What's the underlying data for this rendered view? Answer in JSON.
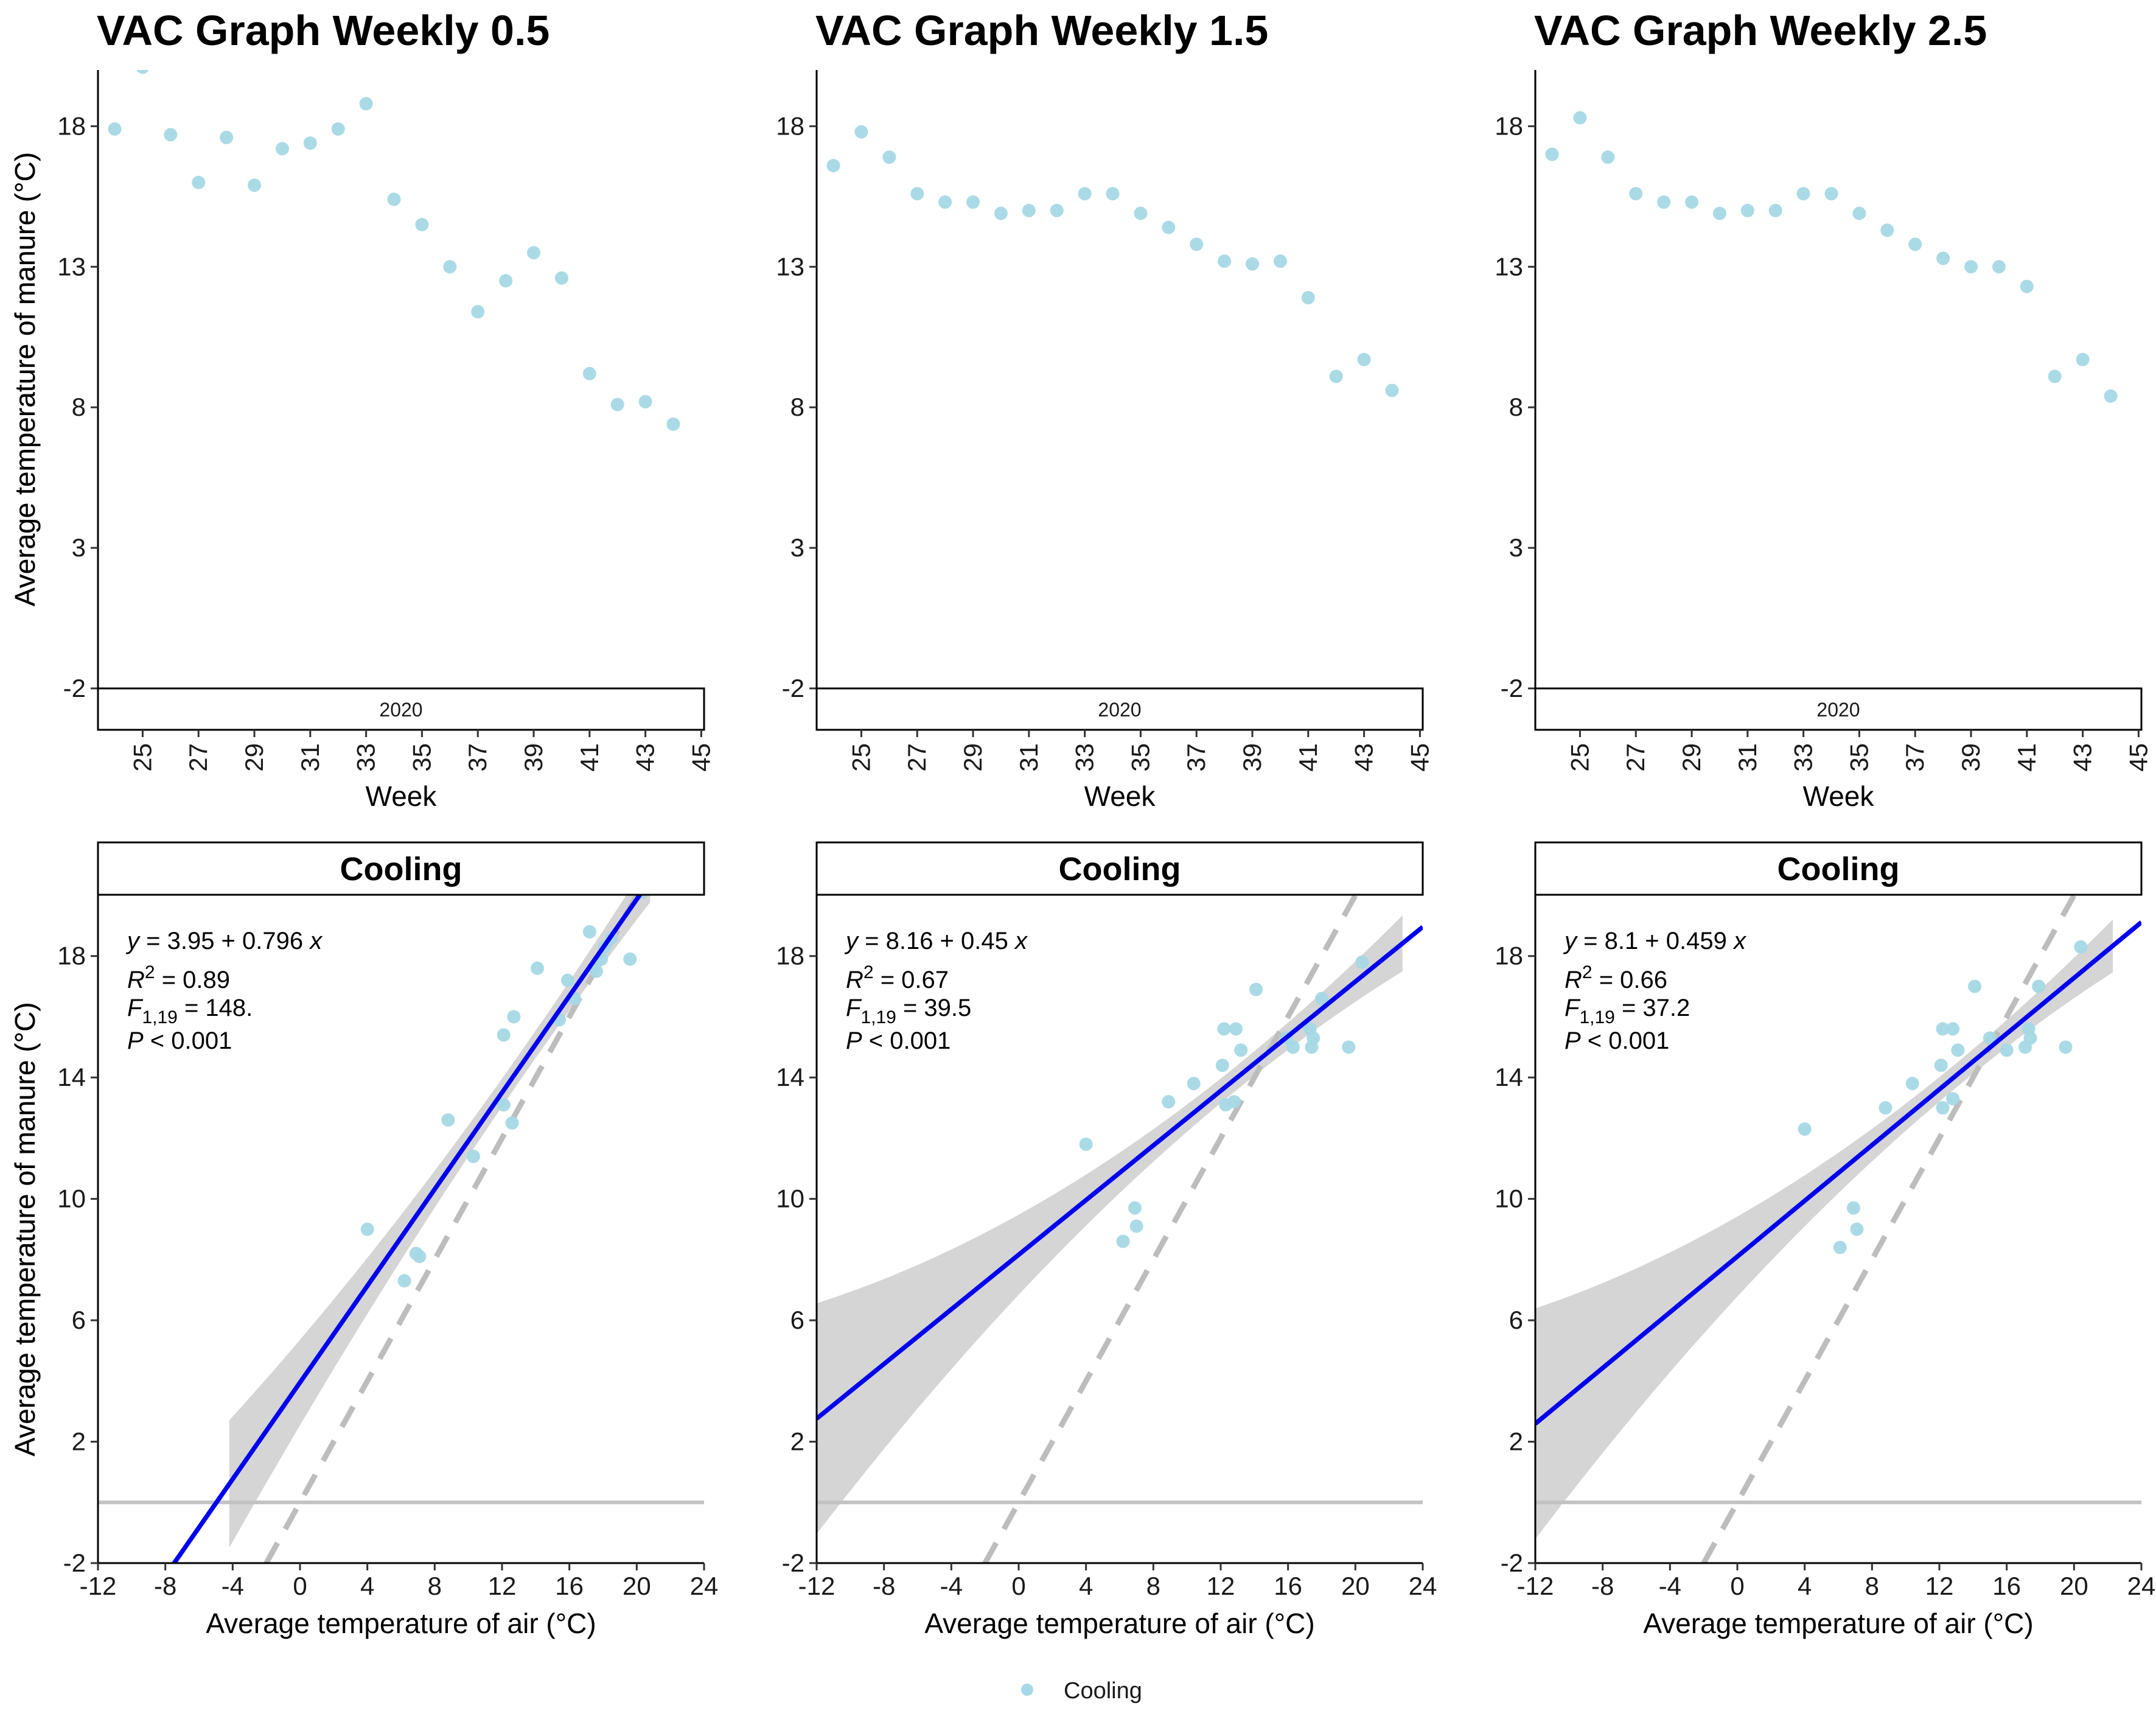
{
  "legend": {
    "label": "Cooling",
    "color": "#a6d8e6"
  },
  "colors": {
    "point": "#a6d8e6",
    "fit": "#0000ee",
    "ribbon": "#d3d3d3",
    "dashed": "#bdbdbd",
    "zero_line": "#c2c2c2"
  },
  "chart_data": [
    {
      "type": "scatter",
      "title": "VAC Graph Weekly 0.5",
      "facet_label": "2020",
      "xlabel": "Week",
      "ylabel": "Average temperature of manure (°C)",
      "xlim": [
        23.4,
        45.1
      ],
      "ylim": [
        -2,
        20
      ],
      "xticks": [
        25,
        27,
        29,
        31,
        33,
        35,
        37,
        39,
        41,
        43,
        45
      ],
      "yticks": [
        -2,
        3,
        8,
        13,
        18
      ],
      "points": [
        [
          24,
          17.9
        ],
        [
          25,
          20.1
        ],
        [
          26,
          17.7
        ],
        [
          27,
          16
        ],
        [
          28,
          17.6
        ],
        [
          29,
          15.9
        ],
        [
          30,
          17.2
        ],
        [
          31,
          17.4
        ],
        [
          32,
          17.9
        ],
        [
          33,
          18.8
        ],
        [
          34,
          15.4
        ],
        [
          35,
          14.5
        ],
        [
          36,
          13
        ],
        [
          37,
          11.4
        ],
        [
          38,
          12.5
        ],
        [
          39,
          13.5
        ],
        [
          40,
          12.6
        ],
        [
          41,
          9.2
        ],
        [
          42,
          8.1
        ],
        [
          43,
          8.2
        ],
        [
          44,
          7.4
        ]
      ]
    },
    {
      "type": "scatter",
      "title": "VAC Graph Weekly 1.5",
      "facet_label": "2020",
      "xlabel": "Week",
      "ylabel": "Average temperature of manure (°C)",
      "xlim": [
        23.4,
        45.1
      ],
      "ylim": [
        -2,
        20
      ],
      "xticks": [
        25,
        27,
        29,
        31,
        33,
        35,
        37,
        39,
        41,
        43,
        45
      ],
      "yticks": [
        -2,
        3,
        8,
        13,
        18
      ],
      "points": [
        [
          24,
          16.6
        ],
        [
          25,
          17.8
        ],
        [
          26,
          16.9
        ],
        [
          27,
          15.6
        ],
        [
          28,
          15.3
        ],
        [
          29,
          15.3
        ],
        [
          30,
          14.9
        ],
        [
          31,
          15
        ],
        [
          32,
          15
        ],
        [
          33,
          15.6
        ],
        [
          34,
          15.6
        ],
        [
          35,
          14.9
        ],
        [
          36,
          14.4
        ],
        [
          37,
          13.8
        ],
        [
          38,
          13.2
        ],
        [
          39,
          13.1
        ],
        [
          40,
          13.2
        ],
        [
          41,
          11.9
        ],
        [
          42,
          9.1
        ],
        [
          43,
          9.7
        ],
        [
          44,
          8.6
        ]
      ]
    },
    {
      "type": "scatter",
      "title": "VAC Graph Weekly 2.5",
      "facet_label": "2020",
      "xlabel": "Week",
      "ylabel": "Average temperature of manure (°C)",
      "xlim": [
        23.4,
        45.1
      ],
      "ylim": [
        -2,
        20
      ],
      "xticks": [
        25,
        27,
        29,
        31,
        33,
        35,
        37,
        39,
        41,
        43,
        45
      ],
      "yticks": [
        -2,
        3,
        8,
        13,
        18
      ],
      "points": [
        [
          24,
          17
        ],
        [
          25,
          18.3
        ],
        [
          26,
          16.9
        ],
        [
          27,
          15.6
        ],
        [
          28,
          15.3
        ],
        [
          29,
          15.3
        ],
        [
          30,
          14.9
        ],
        [
          31,
          15
        ],
        [
          32,
          15
        ],
        [
          33,
          15.6
        ],
        [
          34,
          15.6
        ],
        [
          35,
          14.9
        ],
        [
          36,
          14.3
        ],
        [
          37,
          13.8
        ],
        [
          38,
          13.3
        ],
        [
          39,
          13
        ],
        [
          40,
          13
        ],
        [
          41,
          12.3
        ],
        [
          42,
          9.1
        ],
        [
          43,
          9.7
        ],
        [
          44,
          8.4
        ]
      ]
    },
    {
      "type": "scatter",
      "facet_label": "Cooling",
      "xlabel": "Average temperature of air (°C)",
      "ylabel": "Average temperature of manure (°C)",
      "xlim": [
        -12,
        24
      ],
      "ylim": [
        -2,
        20
      ],
      "xticks": [
        -12,
        -8,
        -4,
        0,
        4,
        8,
        12,
        16,
        20,
        24
      ],
      "yticks": [
        -2,
        2,
        6,
        10,
        14,
        18
      ],
      "equation": {
        "line1": "y = 3.95 + 0.796 x",
        "line2_prefix": "R",
        "line2_sup": "2",
        "line2_suffix": " = 0.89",
        "line3_prefix": "F",
        "line3_sub": "1,19",
        "line3_suffix": " = 148.",
        "line4_prefix": "P",
        "line4_suffix": " < 0.001"
      },
      "fit": {
        "intercept": 3.95,
        "slope": 0.796,
        "x_range": [
          -12,
          24
        ]
      },
      "ribbon": {
        "x_range": [
          -4.2,
          20.8
        ],
        "half_width_at_mean": 0.45,
        "half_width_at_ends": 2.1,
        "x_mean": 13.5
      },
      "identity_line": true,
      "hline": 0,
      "points": [
        [
          4,
          9
        ],
        [
          6.2,
          7.3
        ],
        [
          6.9,
          8.2
        ],
        [
          7.1,
          8.1
        ],
        [
          8.8,
          12.6
        ],
        [
          10.3,
          11.4
        ],
        [
          12.1,
          13.1
        ],
        [
          12.1,
          15.4
        ],
        [
          12.6,
          12.5
        ],
        [
          12.7,
          16
        ],
        [
          14.1,
          17.6
        ],
        [
          15.9,
          17.2
        ],
        [
          17.2,
          18.8
        ],
        [
          17.9,
          17.9
        ],
        [
          18.1,
          18.3
        ],
        [
          19.6,
          17.9
        ],
        [
          20.3,
          20.1
        ],
        [
          15.4,
          15.9
        ],
        [
          16.3,
          16.6
        ],
        [
          17.6,
          17.5
        ],
        [
          18.5,
          18.6
        ]
      ]
    },
    {
      "type": "scatter",
      "facet_label": "Cooling",
      "xlabel": "Average temperature of air (°C)",
      "ylabel": "Average temperature of manure (°C)",
      "xlim": [
        -12,
        24
      ],
      "ylim": [
        -2,
        20
      ],
      "xticks": [
        -12,
        -8,
        -4,
        0,
        4,
        8,
        12,
        16,
        20,
        24
      ],
      "yticks": [
        -2,
        2,
        6,
        10,
        14,
        18
      ],
      "equation": {
        "line1": "y = 8.16 + 0.45 x",
        "line2_prefix": "R",
        "line2_sup": "2",
        "line2_suffix": " = 0.67",
        "line3_prefix": "F",
        "line3_sub": "1,19",
        "line3_suffix": " = 39.5",
        "line4_prefix": "P",
        "line4_suffix": " < 0.001"
      },
      "fit": {
        "intercept": 8.16,
        "slope": 0.45,
        "x_range": [
          -12,
          24
        ]
      },
      "ribbon": {
        "x_range": [
          -12,
          22.8
        ],
        "half_width_at_mean": 0.4,
        "half_width_at_ends": 3.8,
        "x_mean": 13
      },
      "identity_line": true,
      "hline": 0,
      "points": [
        [
          4,
          11.8
        ],
        [
          6.2,
          8.6
        ],
        [
          6.9,
          9.7
        ],
        [
          7,
          9.1
        ],
        [
          8.9,
          13.2
        ],
        [
          10.4,
          13.8
        ],
        [
          12.1,
          14.4
        ],
        [
          12.2,
          15.6
        ],
        [
          12.3,
          13.1
        ],
        [
          12.8,
          13.2
        ],
        [
          12.9,
          15.6
        ],
        [
          13.2,
          14.9
        ],
        [
          14.1,
          16.9
        ],
        [
          15.9,
          15.3
        ],
        [
          16.3,
          15
        ],
        [
          17.3,
          15.6
        ],
        [
          17.4,
          15
        ],
        [
          17.5,
          15.3
        ],
        [
          18,
          16.6
        ],
        [
          19.6,
          15
        ],
        [
          20.4,
          17.8
        ]
      ]
    },
    {
      "type": "scatter",
      "facet_label": "Cooling",
      "xlabel": "Average temperature of air (°C)",
      "ylabel": "Average temperature of manure (°C)",
      "xlim": [
        -12,
        24
      ],
      "ylim": [
        -2,
        20
      ],
      "xticks": [
        -12,
        -8,
        -4,
        0,
        4,
        8,
        12,
        16,
        20,
        24
      ],
      "yticks": [
        -2,
        2,
        6,
        10,
        14,
        18
      ],
      "equation": {
        "line1": "y = 8.1 + 0.459 x",
        "line2_prefix": "R",
        "line2_sup": "2",
        "line2_suffix": " = 0.66",
        "line3_prefix": "F",
        "line3_sub": "1,19",
        "line3_suffix": " = 37.2",
        "line4_prefix": "P",
        "line4_suffix": " < 0.001"
      },
      "fit": {
        "intercept": 8.1,
        "slope": 0.459,
        "x_range": [
          -12,
          24
        ]
      },
      "ribbon": {
        "x_range": [
          -12,
          22.3
        ],
        "half_width_at_mean": 0.4,
        "half_width_at_ends": 3.8,
        "x_mean": 13
      },
      "identity_line": true,
      "hline": 0,
      "points": [
        [
          4,
          12.3
        ],
        [
          6.1,
          8.4
        ],
        [
          6.9,
          9.7
        ],
        [
          7.1,
          9
        ],
        [
          8.8,
          13
        ],
        [
          10.4,
          13.8
        ],
        [
          12.1,
          14.4
        ],
        [
          12.2,
          15.6
        ],
        [
          12.2,
          13
        ],
        [
          12.8,
          13.3
        ],
        [
          12.8,
          15.6
        ],
        [
          13.1,
          14.9
        ],
        [
          14.1,
          17
        ],
        [
          15,
          15.3
        ],
        [
          16,
          14.9
        ],
        [
          17.1,
          15
        ],
        [
          17.3,
          15.6
        ],
        [
          17.4,
          15.3
        ],
        [
          17.9,
          17
        ],
        [
          19.5,
          15
        ],
        [
          20.4,
          18.3
        ]
      ]
    }
  ]
}
